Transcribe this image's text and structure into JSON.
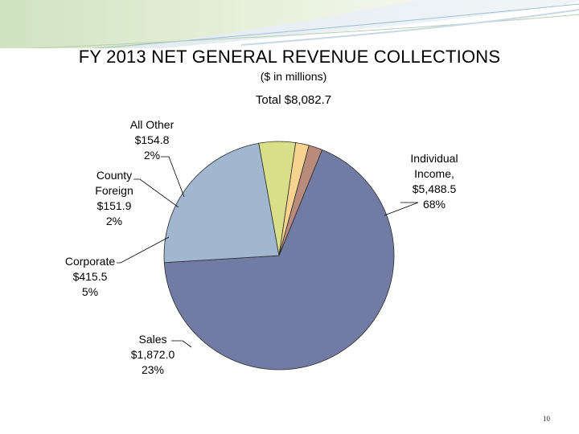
{
  "slide": {
    "title": "FY 2013 NET GENERAL REVENUE COLLECTIONS",
    "subtitle": "($ in millions)",
    "total": "Total  $8,082.7",
    "page_number": "10"
  },
  "chart_data": {
    "type": "pie",
    "title": "FY 2013 NET GENERAL REVENUE COLLECTIONS",
    "subtitle": "($ in millions)",
    "total_label": "Total  $8,082.7",
    "slices": [
      {
        "name": "Individual Income",
        "value": 5488.5,
        "percent": 68,
        "color": "#727BA3",
        "label_lines": [
          "Individual",
          "Income,",
          "$5,488.5",
          "68%"
        ]
      },
      {
        "name": "Sales",
        "value": 1872.0,
        "percent": 23,
        "color": "#A1B7CF",
        "label_lines": [
          "Sales",
          "$1,872.0",
          "23%"
        ]
      },
      {
        "name": "Corporate",
        "value": 415.5,
        "percent": 5,
        "color": "#D9DF88",
        "label_lines": [
          "Corporate",
          "$415.5",
          "5%"
        ]
      },
      {
        "name": "County Foreign",
        "value": 151.9,
        "percent": 2,
        "color": "#F6D38E",
        "label_lines": [
          "County",
          "Foreign",
          "$151.9",
          "2%"
        ]
      },
      {
        "name": "All Other",
        "value": 154.8,
        "percent": 2,
        "color": "#B88B7C",
        "label_lines": [
          "All Other",
          "$154.8",
          "2%"
        ]
      }
    ]
  }
}
